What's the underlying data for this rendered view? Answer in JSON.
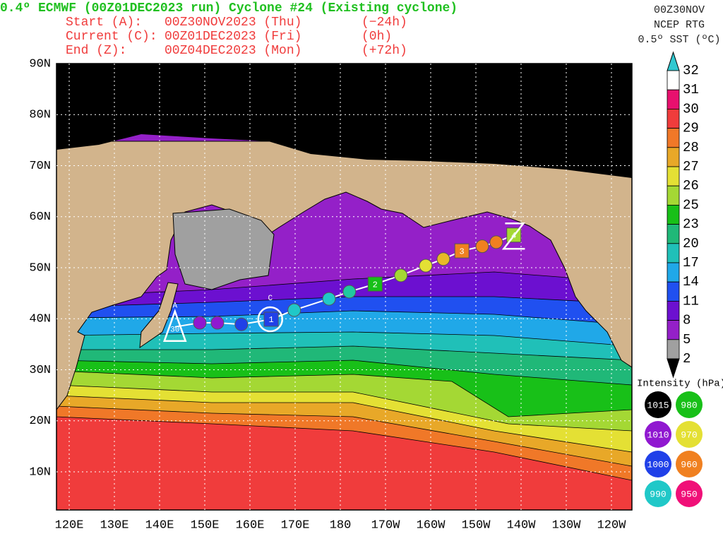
{
  "header": {
    "title": "0.4º ECMWF (00Z01DEC2023 run) Cyclone #24 (Existing cyclone)",
    "lines": [
      [
        "Start (A):",
        "00Z30NOV2023 (Thu)",
        "(−24h)"
      ],
      [
        "Current (C):",
        "00Z01DEC2023 (Fri)",
        "(0h)"
      ],
      [
        "End (Z):",
        "00Z04DEC2023 (Mon)",
        "(+72h)"
      ]
    ]
  },
  "source": [
    "00Z30NOV",
    "NCEP RTG",
    "0.5º SST (ºC)"
  ],
  "map": {
    "lat_labels": [
      "90N",
      "80N",
      "70N",
      "60N",
      "50N",
      "40N",
      "30N",
      "20N",
      "10N"
    ],
    "lon_labels": [
      "120E",
      "130E",
      "140E",
      "150E",
      "160E",
      "170E",
      "180",
      "170W",
      "160W",
      "150W",
      "140W",
      "130W",
      "120W"
    ]
  },
  "colorbar": {
    "labels": [
      "32",
      "31",
      "30",
      "29",
      "28",
      "27",
      "26",
      "25",
      "23",
      "20",
      "17",
      "14",
      "11",
      "8",
      "5",
      "2"
    ],
    "colors": [
      "#ffffff",
      "#e8106e",
      "#f03c3c",
      "#f07828",
      "#e8a828",
      "#e4e034",
      "#a4d834",
      "#18c018",
      "#20b878",
      "#20c0b8",
      "#20a8e8",
      "#2050f0",
      "#6c10d0",
      "#9420c8",
      "#a0a0a0"
    ],
    "top_color": "#30c8d0",
    "bottom_color": "#000000"
  },
  "intensity": {
    "title": "Intensity (hPa):",
    "items": [
      {
        "label": "1015",
        "color": "#000000"
      },
      {
        "label": "980",
        "color": "#18c018"
      },
      {
        "label": "1010",
        "color": "#9018d0"
      },
      {
        "label": "970",
        "color": "#e4e034"
      },
      {
        "label": "1000",
        "color": "#2040e8"
      },
      {
        "label": "960",
        "color": "#f08020"
      },
      {
        "label": "990",
        "color": "#20c8c8"
      },
      {
        "label": "950",
        "color": "#f01078"
      }
    ]
  },
  "track": {
    "start": {
      "label": "A",
      "day": "30",
      "lon": 143.4,
      "lat": 38.4
    },
    "current": {
      "label": "C",
      "lon": 164.5,
      "lat": 39.9
    },
    "end": {
      "label": "Z",
      "lon": 218.5,
      "lat": 56.2
    },
    "points": [
      {
        "lon": 148.9,
        "lat": 39.2,
        "color": "#9018d0"
      },
      {
        "lon": 152.8,
        "lat": 39.2,
        "color": "#9018d0"
      },
      {
        "lon": 158.1,
        "lat": 38.9,
        "color": "#2040e8"
      },
      {
        "lon": 164.7,
        "lat": 39.9,
        "color": "#2040e8",
        "label": "1"
      },
      {
        "lon": 169.8,
        "lat": 41.7,
        "color": "#20c8c8"
      },
      {
        "lon": 177.5,
        "lat": 43.9,
        "color": "#20c8c8"
      },
      {
        "lon": 182.0,
        "lat": 45.3,
        "color": "#20c8a0"
      },
      {
        "lon": 187.7,
        "lat": 46.8,
        "color": "#18c018",
        "label": "2"
      },
      {
        "lon": 193.4,
        "lat": 48.5,
        "color": "#a4d834"
      },
      {
        "lon": 198.9,
        "lat": 50.4,
        "color": "#e4e034"
      },
      {
        "lon": 202.8,
        "lat": 51.7,
        "color": "#e8b828"
      },
      {
        "lon": 206.9,
        "lat": 53.3,
        "color": "#f08020",
        "label": "3"
      },
      {
        "lon": 211.4,
        "lat": 54.2,
        "color": "#f08020"
      },
      {
        "lon": 214.5,
        "lat": 55.0,
        "color": "#f08020"
      },
      {
        "lon": 218.4,
        "lat": 56.4,
        "color": "#a4d834",
        "label": "4"
      }
    ]
  }
}
